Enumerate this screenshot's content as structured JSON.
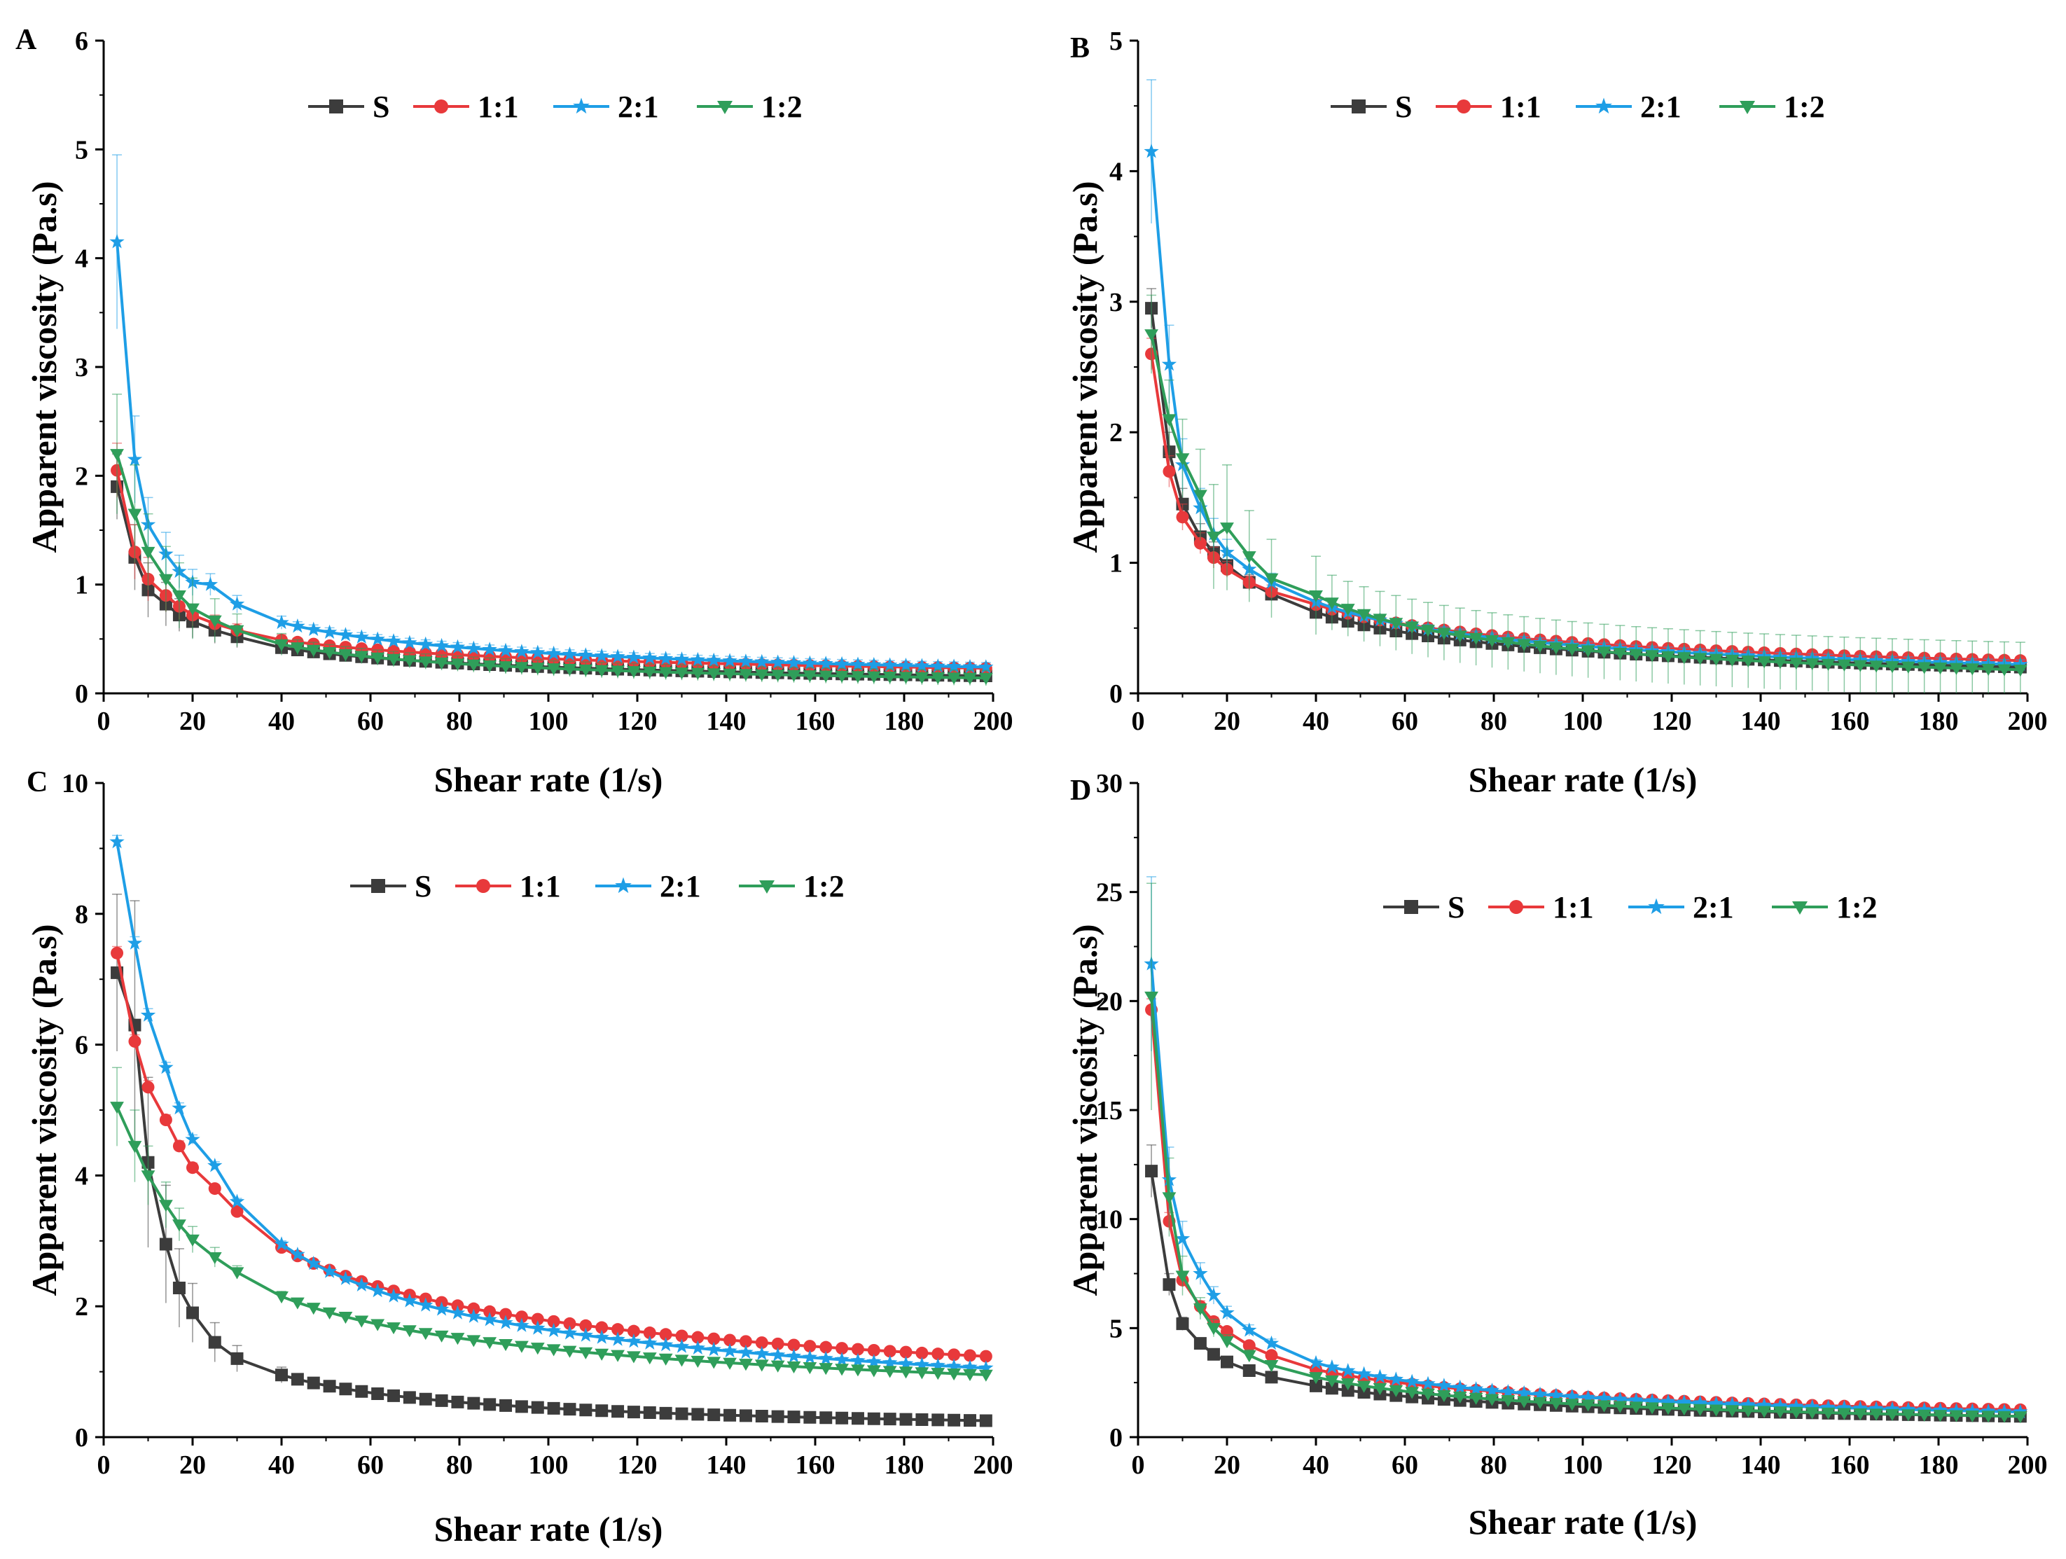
{
  "figure": {
    "colors": {
      "S": "#3c3c3c",
      "1:1": "#e8393b",
      "2:1": "#1e9ee6",
      "1:2": "#2f9e5a"
    },
    "markers": {
      "S": "square",
      "1:1": "circle",
      "2:1": "star",
      "1:2": "triangle-down"
    }
  },
  "chart_data": [
    {
      "panel": "A",
      "type": "line",
      "xlabel": "Shear rate (1/s)",
      "ylabel": "Apparent viscosity (Pa.s)",
      "xlim": [
        0,
        200
      ],
      "ylim": [
        0,
        6
      ],
      "xticks": [
        0,
        20,
        40,
        60,
        80,
        100,
        120,
        140,
        160,
        180,
        200
      ],
      "yticks": [
        0,
        1,
        2,
        3,
        4,
        5,
        6
      ],
      "legend": "top-center",
      "series": [
        {
          "name": "S",
          "color": "#3c3c3c",
          "marker": "square",
          "end": 0.16,
          "x": [
            3,
            7,
            10,
            14,
            17,
            20,
            25,
            30,
            40
          ],
          "values": [
            1.9,
            1.25,
            0.95,
            0.82,
            0.72,
            0.66,
            0.58,
            0.52,
            0.42
          ],
          "err": [
            0.3,
            0.3,
            0.25,
            0.2,
            0.15,
            0.15,
            0.12,
            0.1,
            0.06
          ]
        },
        {
          "name": "1:1",
          "color": "#e8393b",
          "marker": "circle",
          "end": 0.23,
          "x": [
            3,
            7,
            10,
            14,
            17,
            20,
            25,
            30,
            40
          ],
          "values": [
            2.05,
            1.3,
            1.05,
            0.9,
            0.8,
            0.72,
            0.64,
            0.58,
            0.49
          ],
          "err": [
            0.25,
            0.25,
            0.2,
            0.15,
            0.12,
            0.1,
            0.08,
            0.06,
            0.05
          ]
        },
        {
          "name": "2:1",
          "color": "#1e9ee6",
          "marker": "star",
          "end": 0.24,
          "x": [
            3,
            7,
            10,
            14,
            17,
            20,
            24,
            30,
            40
          ],
          "values": [
            4.15,
            2.15,
            1.55,
            1.28,
            1.12,
            1.02,
            1.0,
            0.82,
            0.65
          ],
          "err": [
            0.8,
            0.4,
            0.25,
            0.2,
            0.15,
            0.12,
            0.1,
            0.08,
            0.06
          ]
        },
        {
          "name": "1:2",
          "color": "#2f9e5a",
          "marker": "triangle-down",
          "end": 0.14,
          "x": [
            3,
            7,
            10,
            14,
            17,
            20,
            25,
            30,
            40
          ],
          "values": [
            2.2,
            1.65,
            1.3,
            1.05,
            0.9,
            0.78,
            0.67,
            0.58,
            0.45
          ],
          "err": [
            0.55,
            0.45,
            0.35,
            0.3,
            0.3,
            0.28,
            0.2,
            0.15,
            0.1
          ]
        }
      ]
    },
    {
      "panel": "B",
      "type": "line",
      "xlabel": "Shear rate (1/s)",
      "ylabel": "Apparent viscosity (Pa.s)",
      "xlim": [
        0,
        200
      ],
      "ylim": [
        0,
        5
      ],
      "xticks": [
        0,
        20,
        40,
        60,
        80,
        100,
        120,
        140,
        160,
        180,
        200
      ],
      "yticks": [
        0,
        1,
        2,
        3,
        4,
        5
      ],
      "legend": "top-center",
      "series": [
        {
          "name": "S",
          "color": "#3c3c3c",
          "marker": "square",
          "end": 0.2,
          "x": [
            3,
            7,
            10,
            14,
            17,
            20,
            25,
            30,
            40
          ],
          "values": [
            2.95,
            1.85,
            1.45,
            1.2,
            1.08,
            0.98,
            0.85,
            0.76,
            0.62
          ],
          "err": [
            0.15,
            0.15,
            0.12,
            0.1,
            0.08,
            0.08,
            0.06,
            0.05,
            0.04
          ]
        },
        {
          "name": "1:1",
          "color": "#e8393b",
          "marker": "circle",
          "end": 0.25,
          "x": [
            3,
            7,
            10,
            14,
            17,
            20,
            25,
            30,
            40
          ],
          "values": [
            2.6,
            1.7,
            1.35,
            1.15,
            1.04,
            0.95,
            0.85,
            0.78,
            0.68
          ],
          "err": [
            0.12,
            0.12,
            0.1,
            0.08,
            0.08,
            0.06,
            0.05,
            0.05,
            0.04
          ]
        },
        {
          "name": "2:1",
          "color": "#1e9ee6",
          "marker": "star",
          "end": 0.22,
          "x": [
            3,
            7,
            10,
            14,
            17,
            20,
            25,
            30,
            40
          ],
          "values": [
            4.15,
            2.52,
            1.75,
            1.42,
            1.22,
            1.08,
            0.95,
            0.85,
            0.7
          ],
          "err": [
            0.55,
            0.3,
            0.2,
            0.15,
            0.12,
            0.1,
            0.08,
            0.07,
            0.05
          ]
        },
        {
          "name": "1:2",
          "color": "#2f9e5a",
          "marker": "triangle-down",
          "end": 0.18,
          "x": [
            3,
            7,
            10,
            14,
            17,
            20,
            25,
            30,
            40
          ],
          "values": [
            2.75,
            2.1,
            1.8,
            1.52,
            1.2,
            1.27,
            1.05,
            0.88,
            0.75
          ],
          "err": [
            0.3,
            0.3,
            0.3,
            0.35,
            0.4,
            0.48,
            0.35,
            0.3,
            0.3
          ]
        }
      ]
    },
    {
      "panel": "C",
      "type": "line",
      "xlabel": "Shear rate (1/s)",
      "ylabel": "Apparent viscosity (Pa.s)",
      "xlim": [
        0,
        200
      ],
      "ylim": [
        0,
        10
      ],
      "xticks": [
        0,
        20,
        40,
        60,
        80,
        100,
        120,
        140,
        160,
        180,
        200
      ],
      "yticks": [
        0,
        2,
        4,
        6,
        8,
        10
      ],
      "legend": "top-center",
      "series": [
        {
          "name": "S",
          "color": "#3c3c3c",
          "marker": "square",
          "end": 0.25,
          "x": [
            3,
            7,
            10,
            14,
            17,
            20,
            25,
            30,
            40
          ],
          "values": [
            7.1,
            6.3,
            4.2,
            2.95,
            2.28,
            1.9,
            1.45,
            1.2,
            0.95
          ],
          "err": [
            1.2,
            1.9,
            1.3,
            0.9,
            0.6,
            0.45,
            0.3,
            0.2,
            0.12
          ]
        },
        {
          "name": "1:1",
          "color": "#e8393b",
          "marker": "circle",
          "end": 1.23,
          "x": [
            3,
            7,
            10,
            14,
            17,
            20,
            25,
            30,
            40
          ],
          "values": [
            7.4,
            6.05,
            5.35,
            4.85,
            4.45,
            4.12,
            3.8,
            3.45,
            2.9
          ],
          "err": [
            0.1,
            0.1,
            0.1,
            0.08,
            0.08,
            0.07,
            0.06,
            0.05,
            0.05
          ]
        },
        {
          "name": "2:1",
          "color": "#1e9ee6",
          "marker": "star",
          "end": 1.05,
          "x": [
            3,
            7,
            10,
            14,
            17,
            20,
            25,
            30,
            40
          ],
          "values": [
            9.1,
            7.55,
            6.45,
            5.65,
            5.03,
            4.55,
            4.15,
            3.6,
            2.95
          ],
          "err": [
            0.1,
            0.1,
            0.1,
            0.08,
            0.08,
            0.07,
            0.06,
            0.05,
            0.05
          ]
        },
        {
          "name": "1:2",
          "color": "#2f9e5a",
          "marker": "triangle-down",
          "end": 0.95,
          "x": [
            3,
            7,
            10,
            14,
            17,
            20,
            25,
            30,
            40
          ],
          "values": [
            5.05,
            4.45,
            4.0,
            3.55,
            3.25,
            3.02,
            2.75,
            2.52,
            2.15
          ],
          "err": [
            0.6,
            0.55,
            0.45,
            0.35,
            0.25,
            0.2,
            0.15,
            0.1,
            0.08
          ]
        }
      ]
    },
    {
      "panel": "D",
      "type": "line",
      "xlabel": "Shear rate (1/s)",
      "ylabel": "Apparent viscosity (Pa.s)",
      "xlim": [
        0,
        200
      ],
      "ylim": [
        0,
        30
      ],
      "xticks": [
        0,
        20,
        40,
        60,
        80,
        100,
        120,
        140,
        160,
        180,
        200
      ],
      "yticks": [
        0,
        5,
        10,
        15,
        20,
        25,
        30
      ],
      "legend": "top-center",
      "series": [
        {
          "name": "S",
          "color": "#3c3c3c",
          "marker": "square",
          "end": 0.95,
          "x": [
            3,
            7,
            10,
            14,
            17,
            20,
            25,
            30,
            40
          ],
          "values": [
            12.2,
            7.0,
            5.2,
            4.3,
            3.8,
            3.45,
            3.05,
            2.75,
            2.35
          ],
          "err": [
            1.2,
            0.5,
            0.3,
            0.25,
            0.2,
            0.15,
            0.12,
            0.1,
            0.08
          ]
        },
        {
          "name": "1:1",
          "color": "#e8393b",
          "marker": "circle",
          "end": 1.25,
          "x": [
            3,
            7,
            10,
            14,
            17,
            20,
            25,
            30,
            40
          ],
          "values": [
            19.6,
            9.9,
            7.2,
            6.0,
            5.3,
            4.85,
            4.2,
            3.75,
            3.1
          ],
          "err": [
            0.5,
            0.4,
            0.3,
            0.25,
            0.2,
            0.15,
            0.12,
            0.1,
            0.08
          ]
        },
        {
          "name": "2:1",
          "color": "#1e9ee6",
          "marker": "star",
          "end": 1.15,
          "x": [
            3,
            7,
            10,
            14,
            17,
            20,
            25,
            30,
            40
          ],
          "values": [
            21.7,
            11.8,
            9.1,
            7.5,
            6.5,
            5.7,
            4.9,
            4.3,
            3.4
          ],
          "err": [
            4.0,
            1.5,
            0.8,
            0.5,
            0.4,
            0.3,
            0.25,
            0.2,
            0.15
          ]
        },
        {
          "name": "1:2",
          "color": "#2f9e5a",
          "marker": "triangle-down",
          "end": 0.95,
          "x": [
            3,
            7,
            10,
            14,
            17,
            20,
            25,
            30,
            40
          ],
          "values": [
            20.2,
            11.0,
            7.4,
            5.9,
            5.0,
            4.4,
            3.75,
            3.3,
            2.75
          ],
          "err": [
            5.2,
            1.8,
            0.9,
            0.5,
            0.4,
            0.3,
            0.25,
            0.2,
            0.15
          ]
        }
      ]
    }
  ]
}
